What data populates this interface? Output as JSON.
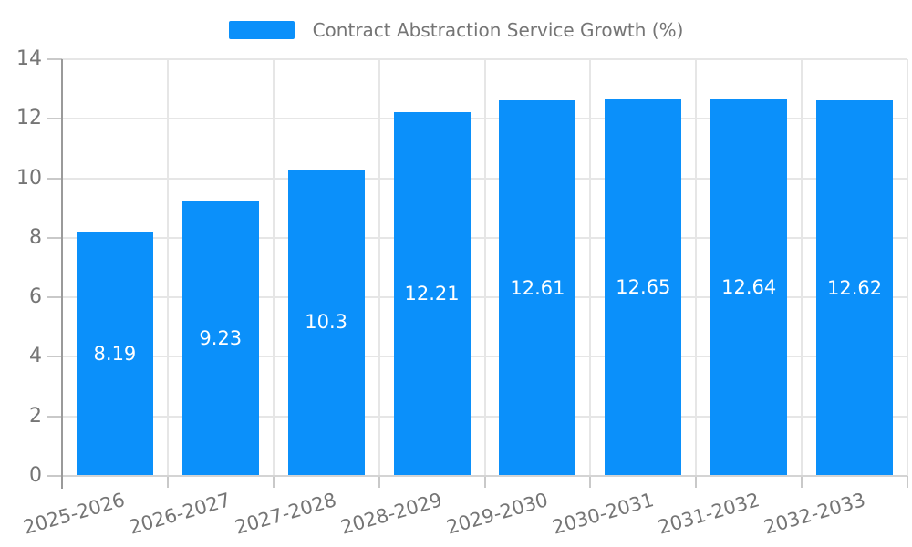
{
  "legend": {
    "label": "Contract Abstraction Service Growth (%)"
  },
  "chart_data": {
    "type": "bar",
    "title": "Contract Abstraction Service Growth (%)",
    "legend_entries": [
      "Contract Abstraction Service Growth (%)"
    ],
    "legend_position": "top-center",
    "categories": [
      "2025-2026",
      "2026-2027",
      "2027-2028",
      "2028-2029",
      "2029-2030",
      "2030-2031",
      "2031-2032",
      "2032-2033"
    ],
    "values": [
      8.19,
      9.23,
      10.3,
      12.21,
      12.61,
      12.65,
      12.64,
      12.62
    ],
    "value_labels": [
      "8.19",
      "9.23",
      "10.3",
      "12.21",
      "12.61",
      "12.65",
      "12.64",
      "12.62"
    ],
    "xlabel": "",
    "ylabel": "",
    "ylim": [
      0,
      14
    ],
    "yticks": [
      0,
      2,
      4,
      6,
      8,
      10,
      12,
      14
    ],
    "grid": true,
    "bar_label_position": "inside-center",
    "x_label_rotation_deg": -16
  },
  "colors": {
    "background": "#ffffff",
    "bar": "#0b90fa",
    "bar_label": "#ffffff",
    "axis_text": "#757575",
    "legend_text": "#757575",
    "grid_line": "#e6e6e6",
    "axis_line": "#9a9a9a",
    "tick_line": "#c9c9c9",
    "x_axis_line": "#d4d4d4"
  }
}
